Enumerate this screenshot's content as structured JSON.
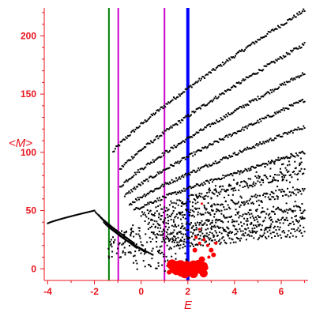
{
  "chart_data": {
    "type": "scatter",
    "title": "",
    "xlabel": "E",
    "ylabel": "<M>",
    "xlim": [
      -4.15,
      7.15
    ],
    "ylim": [
      -10,
      224
    ],
    "xticks": [
      -4,
      -2,
      0,
      2,
      4,
      6
    ],
    "yticks": [
      0,
      50,
      100,
      150,
      200
    ],
    "grid": false,
    "legend": "none",
    "colors": {
      "axis": "#e8141b",
      "ticks_text": "#e8141b",
      "black_points": "#000000",
      "red_points": "#ff0000",
      "green_line": "#008000",
      "magenta_line": "#cc00cc",
      "blue_line": "#0000ff"
    },
    "vertical_lines": [
      {
        "x": -1.38,
        "color": "#008000",
        "width": 2
      },
      {
        "x": -0.98,
        "color": "#cc00cc",
        "width": 2
      },
      {
        "x": 1.0,
        "color": "#cc00cc",
        "width": 2
      },
      {
        "x": 2.0,
        "color": "#0000ff",
        "width": 4
      }
    ],
    "series": [
      {
        "kind": "bands",
        "color": "#000000",
        "values": [
          {
            "x0": -4.0,
            "y0": 39,
            "x1": -2.0,
            "y1": 50
          },
          {
            "x0": -2.0,
            "y0": 50,
            "x1": -0.3,
            "y1": 22
          },
          {
            "x0": -1.8,
            "y0": 46,
            "x1": -0.2,
            "y1": 18
          },
          {
            "x0": -1.6,
            "y0": 40,
            "x1": 0.2,
            "y1": 14
          },
          {
            "x0": -1.0,
            "y0": 30,
            "x1": 0.5,
            "y1": 12
          },
          {
            "x0": -1.2,
            "y0": 100,
            "x1": 7.0,
            "y1": 222
          },
          {
            "x0": -0.9,
            "y0": 85,
            "x1": 7.0,
            "y1": 193
          },
          {
            "x0": -0.9,
            "y0": 70,
            "x1": 7.0,
            "y1": 168
          },
          {
            "x0": -0.7,
            "y0": 62,
            "x1": 7.0,
            "y1": 145
          },
          {
            "x0": -0.5,
            "y0": 55,
            "x1": 7.0,
            "y1": 122
          },
          {
            "x0": -0.3,
            "y0": 50,
            "x1": 7.0,
            "y1": 100
          },
          {
            "x0": 0.0,
            "y0": 45,
            "x1": 7.0,
            "y1": 85
          },
          {
            "x0": 0.3,
            "y0": 38,
            "x1": 7.0,
            "y1": 68
          },
          {
            "x0": 0.6,
            "y0": 30,
            "x1": 7.0,
            "y1": 52
          },
          {
            "x0": 0.9,
            "y0": 25,
            "x1": 7.0,
            "y1": 42
          },
          {
            "x0": 1.2,
            "y0": 20,
            "x1": 7.0,
            "y1": 32
          }
        ]
      },
      {
        "kind": "red-cluster",
        "color": "#ff0000",
        "values": [
          {
            "x": 1.5,
            "y": -2,
            "r": 5
          },
          {
            "x": 1.75,
            "y": 0,
            "r": 7
          },
          {
            "x": 2.0,
            "y": 0,
            "r": 9
          },
          {
            "x": 2.2,
            "y": 1,
            "r": 7
          },
          {
            "x": 2.45,
            "y": 2,
            "r": 6
          },
          {
            "x": 2.6,
            "y": 8,
            "r": 4
          },
          {
            "x": 2.3,
            "y": 16,
            "r": 3
          },
          {
            "x": 2.5,
            "y": 22,
            "r": 2
          },
          {
            "x": 2.7,
            "y": 25,
            "r": 2
          },
          {
            "x": 2.85,
            "y": 20,
            "r": 2
          },
          {
            "x": 3.0,
            "y": 16,
            "r": 3
          },
          {
            "x": 3.2,
            "y": 22,
            "r": 2
          },
          {
            "x": 2.9,
            "y": 10,
            "r": 2
          },
          {
            "x": 3.1,
            "y": 12,
            "r": 3
          },
          {
            "x": 2.35,
            "y": 27,
            "r": 2
          },
          {
            "x": 2.5,
            "y": 34,
            "r": 1.5
          },
          {
            "x": 2.6,
            "y": 56,
            "r": 1.5
          },
          {
            "x": 2.3,
            "y": 4,
            "r": 4
          },
          {
            "x": 1.2,
            "y": -3,
            "r": 3
          }
        ]
      }
    ]
  }
}
